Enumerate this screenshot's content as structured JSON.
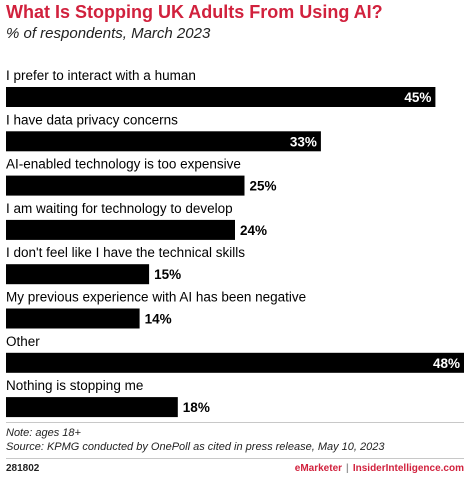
{
  "header": {
    "title": "What Is Stopping UK Adults From Using AI?",
    "subtitle": "% of respondents, March 2023"
  },
  "chart_data": {
    "type": "bar",
    "orientation": "horizontal",
    "categories": [
      "I prefer to interact with a human",
      "I have data privacy concerns",
      "AI-enabled technology is too expensive",
      "I am waiting for technology to develop",
      "I don't feel like I have the technical skills",
      "My previous experience with AI has been negative",
      "Other",
      "Nothing is stopping me"
    ],
    "values": [
      45,
      33,
      25,
      24,
      15,
      14,
      48,
      18
    ],
    "value_labels": [
      "45%",
      "33%",
      "25%",
      "24%",
      "15%",
      "14%",
      "48%",
      "18%"
    ],
    "xlim": [
      0,
      48
    ],
    "bar_color": "#000000",
    "grid": false,
    "legend": "none"
  },
  "footer": {
    "note": "Note: ages 18+",
    "source": "Source: KPMG conducted by OnePoll as cited in press release, May 10, 2023",
    "chart_id": "281802",
    "brand_primary": "eMarketer",
    "brand_separator": "|",
    "brand_secondary": "InsiderIntelligence.com"
  },
  "colors": {
    "title": "#d1213d",
    "bar": "#000000",
    "bar_label_inside": "#ffffff",
    "bar_label_outside": "#000000"
  }
}
